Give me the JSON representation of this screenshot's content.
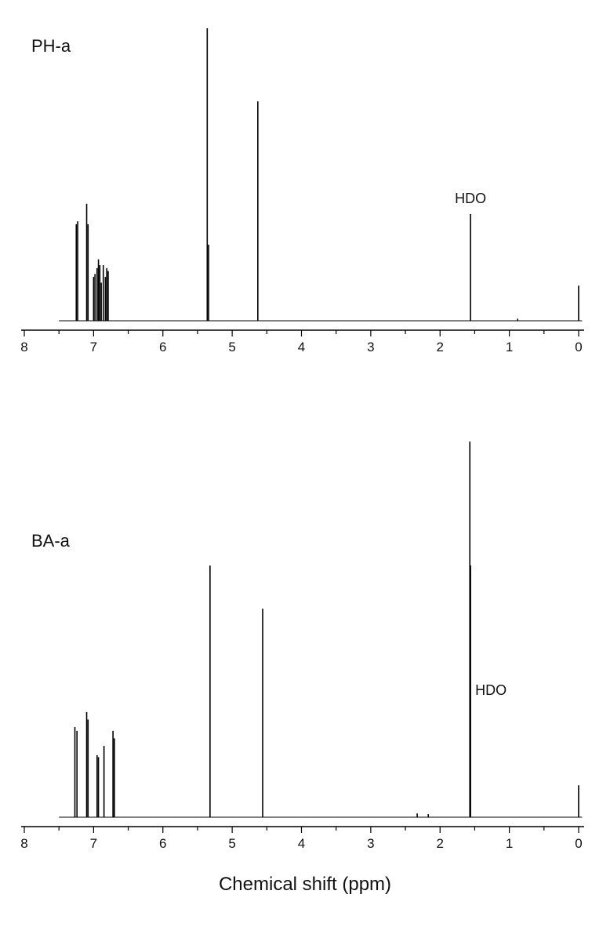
{
  "chart_data": [
    {
      "type": "line",
      "title": "PH-a",
      "xlabel": "",
      "ylabel": "",
      "xlim": [
        8,
        0
      ],
      "x_reversed": true,
      "xticks": [
        8,
        7,
        6,
        5,
        4,
        3,
        2,
        1,
        0
      ],
      "grid": false,
      "y_axis_visible": false,
      "ylim": [
        0,
        1
      ],
      "line_color": "#000000",
      "peaks": [
        {
          "x": 7.25,
          "y": 0.33
        },
        {
          "x": 7.23,
          "y": 0.34
        },
        {
          "x": 7.1,
          "y": 0.4
        },
        {
          "x": 7.08,
          "y": 0.33
        },
        {
          "x": 7.0,
          "y": 0.15
        },
        {
          "x": 6.98,
          "y": 0.16
        },
        {
          "x": 6.95,
          "y": 0.18
        },
        {
          "x": 6.93,
          "y": 0.21
        },
        {
          "x": 6.91,
          "y": 0.19
        },
        {
          "x": 6.89,
          "y": 0.13
        },
        {
          "x": 6.86,
          "y": 0.19
        },
        {
          "x": 6.83,
          "y": 0.15
        },
        {
          "x": 6.81,
          "y": 0.18
        },
        {
          "x": 6.79,
          "y": 0.17
        },
        {
          "x": 5.36,
          "y": 1.0
        },
        {
          "x": 5.34,
          "y": 0.26
        },
        {
          "x": 4.63,
          "y": 0.75
        },
        {
          "x": 1.56,
          "y": 0.365
        },
        {
          "x": 0.0,
          "y": 0.12
        },
        {
          "x": 0.88,
          "y": 0.007
        }
      ],
      "annotations": [
        {
          "text": "HDO",
          "x": 1.56
        }
      ]
    },
    {
      "type": "line",
      "title": "BA-a",
      "xlabel": "Chemical shift (ppm)",
      "ylabel": "",
      "xlim": [
        8,
        0
      ],
      "x_reversed": true,
      "xticks": [
        8,
        7,
        6,
        5,
        4,
        3,
        2,
        1,
        0
      ],
      "grid": false,
      "y_axis_visible": false,
      "ylim": [
        0,
        1
      ],
      "line_color": "#000000",
      "peaks": [
        {
          "x": 7.27,
          "y": 0.24
        },
        {
          "x": 7.24,
          "y": 0.23
        },
        {
          "x": 7.1,
          "y": 0.28
        },
        {
          "x": 7.08,
          "y": 0.26
        },
        {
          "x": 6.95,
          "y": 0.165
        },
        {
          "x": 6.93,
          "y": 0.16
        },
        {
          "x": 6.85,
          "y": 0.19
        },
        {
          "x": 6.72,
          "y": 0.23
        },
        {
          "x": 6.7,
          "y": 0.21
        },
        {
          "x": 5.32,
          "y": 0.67
        },
        {
          "x": 4.56,
          "y": 0.555
        },
        {
          "x": 1.57,
          "y": 1.0
        },
        {
          "x": 1.56,
          "y": 0.67
        },
        {
          "x": 2.33,
          "y": 0.01
        },
        {
          "x": 2.17,
          "y": 0.008
        },
        {
          "x": 0.0,
          "y": 0.085
        }
      ],
      "annotations": [
        {
          "text": "HDO",
          "x": 1.56
        }
      ]
    }
  ]
}
